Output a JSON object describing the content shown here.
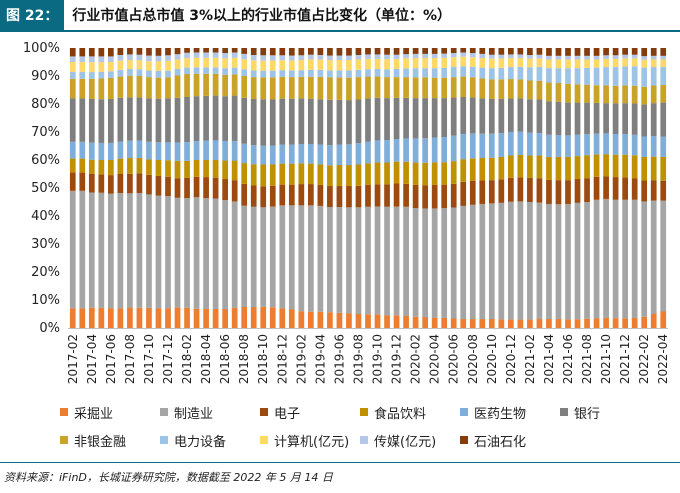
{
  "header": {
    "figure_number": "图 22：",
    "figure_title": "行业市值占总市值 3%以上的行业市值占比变化（单位：%）"
  },
  "source": "资料来源：iFinD，长城证券研究院，数据截至 2022 年 5 月 14 日",
  "chart_data": {
    "type": "bar",
    "stacked": true,
    "categories": [
      "2017-02",
      "2017-03",
      "2017-04",
      "2017-05",
      "2017-06",
      "2017-07",
      "2017-08",
      "2017-09",
      "2017-10",
      "2017-11",
      "2017-12",
      "2018-01",
      "2018-02",
      "2018-03",
      "2018-04",
      "2018-05",
      "2018-06",
      "2018-07",
      "2018-08",
      "2018-09",
      "2018-10",
      "2018-11",
      "2018-12",
      "2019-01",
      "2019-02",
      "2019-03",
      "2019-04",
      "2019-05",
      "2019-06",
      "2019-07",
      "2019-08",
      "2019-09",
      "2019-10",
      "2019-11",
      "2019-12",
      "2020-01",
      "2020-02",
      "2020-03",
      "2020-04",
      "2020-05",
      "2020-06",
      "2020-07",
      "2020-08",
      "2020-09",
      "2020-10",
      "2020-11",
      "2020-12",
      "2021-01",
      "2021-02",
      "2021-03",
      "2021-04",
      "2021-05",
      "2021-06",
      "2021-07",
      "2021-08",
      "2021-09",
      "2021-10",
      "2021-11",
      "2021-12",
      "2022-01",
      "2022-02",
      "2022-03",
      "2022-04"
    ],
    "tick_labels": [
      "2017-02",
      "2017-04",
      "2017-06",
      "2017-08",
      "2017-10",
      "2017-12",
      "2018-02",
      "2018-04",
      "2018-06",
      "2018-08",
      "2018-10",
      "2018-12",
      "2019-02",
      "2019-04",
      "2019-06",
      "2019-08",
      "2019-10",
      "2019-12",
      "2020-02",
      "2020-04",
      "2020-06",
      "2020-08",
      "2020-10",
      "2020-12",
      "2021-02",
      "2021-04",
      "2021-06",
      "2021-08",
      "2021-10",
      "2021-12",
      "2022-02",
      "2022-04"
    ],
    "ylim": [
      0,
      100
    ],
    "y_ticks": [
      "0%",
      "10%",
      "20%",
      "30%",
      "40%",
      "50%",
      "60%",
      "70%",
      "80%",
      "90%",
      "100%"
    ],
    "legend_placement": "bottom",
    "grid": false,
    "series": [
      {
        "name": "采掘业",
        "color": "#ed7d31",
        "values": [
          7.0,
          7.0,
          7.2,
          7.2,
          7.0,
          7.0,
          7.3,
          7.2,
          7.2,
          7.0,
          7.0,
          7.4,
          7.2,
          6.9,
          6.8,
          6.8,
          6.8,
          7.2,
          7.5,
          7.5,
          7.6,
          7.4,
          7.0,
          6.6,
          6.0,
          5.8,
          5.8,
          5.6,
          5.4,
          5.2,
          5.0,
          4.9,
          4.8,
          4.6,
          4.5,
          4.3,
          4.0,
          3.9,
          3.7,
          3.6,
          3.4,
          3.2,
          3.2,
          3.2,
          3.2,
          3.1,
          3.0,
          3.0,
          3.0,
          3.2,
          3.2,
          3.2,
          3.1,
          3.1,
          3.3,
          3.5,
          3.6,
          3.5,
          3.5,
          3.6,
          4.0,
          5.0,
          5.9
        ]
      },
      {
        "name": "制造业",
        "color": "#a5a5a5",
        "values": [
          42.0,
          42.0,
          41.2,
          41.1,
          41.0,
          41.2,
          40.8,
          41.0,
          40.5,
          40.3,
          40.1,
          39.1,
          39.2,
          39.8,
          39.6,
          39.4,
          38.9,
          38.0,
          36.2,
          35.8,
          35.5,
          36.0,
          36.8,
          37.2,
          37.8,
          38.0,
          37.8,
          37.6,
          37.8,
          37.9,
          38.1,
          38.4,
          38.6,
          38.7,
          38.9,
          39.0,
          38.8,
          38.8,
          39.0,
          39.2,
          39.6,
          40.4,
          40.8,
          41.1,
          41.3,
          41.6,
          42.1,
          42.2,
          42.0,
          41.6,
          41.1,
          41.0,
          41.2,
          41.6,
          41.7,
          42.3,
          42.5,
          42.3,
          42.3,
          42.2,
          41.2,
          40.5,
          39.6
        ]
      },
      {
        "name": "电子",
        "color": "#9c4a10",
        "values": [
          6.5,
          6.5,
          6.6,
          6.5,
          6.6,
          6.8,
          7.0,
          7.0,
          7.0,
          7.0,
          6.9,
          7.0,
          7.2,
          7.3,
          7.5,
          7.5,
          7.5,
          7.6,
          7.8,
          7.6,
          7.5,
          7.4,
          7.4,
          7.4,
          7.6,
          7.6,
          7.5,
          7.5,
          7.5,
          7.6,
          7.7,
          7.8,
          7.9,
          8.0,
          8.2,
          8.2,
          8.3,
          8.3,
          8.4,
          8.4,
          8.5,
          8.6,
          8.5,
          8.4,
          8.3,
          8.4,
          8.5,
          8.6,
          8.6,
          8.7,
          8.6,
          8.6,
          8.5,
          8.5,
          8.5,
          8.2,
          8.0,
          8.1,
          8.0,
          7.6,
          7.5,
          7.3,
          7.1
        ]
      },
      {
        "name": "食品饮料",
        "color": "#bf9000",
        "values": [
          5.0,
          5.0,
          5.1,
          5.2,
          5.4,
          5.5,
          5.6,
          5.5,
          5.5,
          5.7,
          5.9,
          6.2,
          6.1,
          6.0,
          6.1,
          6.3,
          6.6,
          7.0,
          7.4,
          7.6,
          7.8,
          7.6,
          7.5,
          7.5,
          7.4,
          7.3,
          7.3,
          7.4,
          7.5,
          7.5,
          7.6,
          7.7,
          7.8,
          7.8,
          7.8,
          7.9,
          8.0,
          8.0,
          8.0,
          8.0,
          8.1,
          8.1,
          8.1,
          8.0,
          8.0,
          8.0,
          8.0,
          8.0,
          8.0,
          8.1,
          8.2,
          8.3,
          8.3,
          8.2,
          8.2,
          8.0,
          8.0,
          8.0,
          8.1,
          8.3,
          8.4,
          8.4,
          8.5
        ]
      },
      {
        "name": "医药生物",
        "color": "#7faedb",
        "values": [
          6.0,
          6.0,
          6.1,
          6.1,
          6.1,
          6.1,
          6.2,
          6.2,
          6.3,
          6.3,
          6.4,
          6.5,
          6.7,
          6.8,
          6.9,
          7.0,
          7.0,
          7.0,
          6.9,
          6.8,
          6.7,
          6.7,
          6.8,
          6.8,
          6.9,
          7.0,
          7.1,
          7.2,
          7.3,
          7.4,
          7.6,
          7.8,
          7.9,
          8.0,
          8.1,
          8.3,
          8.6,
          8.8,
          8.9,
          9.0,
          9.1,
          9.0,
          8.9,
          8.7,
          8.6,
          8.5,
          8.4,
          8.3,
          8.2,
          8.0,
          7.9,
          7.8,
          7.7,
          7.6,
          7.5,
          7.4,
          7.4,
          7.4,
          7.4,
          7.3,
          7.3,
          7.3,
          7.3
        ]
      },
      {
        "name": "银行",
        "color": "#7f7f7f",
        "values": [
          15.5,
          15.5,
          15.6,
          15.6,
          15.7,
          15.6,
          15.4,
          15.4,
          15.5,
          15.6,
          15.7,
          16.0,
          16.1,
          16.0,
          16.0,
          16.0,
          16.0,
          16.2,
          16.4,
          16.5,
          16.6,
          16.5,
          16.4,
          16.4,
          16.3,
          16.2,
          16.2,
          16.2,
          16.0,
          15.8,
          15.6,
          15.4,
          15.2,
          15.0,
          14.7,
          14.5,
          14.4,
          14.3,
          14.1,
          13.9,
          13.6,
          13.2,
          12.8,
          12.6,
          12.4,
          12.2,
          12.0,
          11.9,
          11.9,
          12.0,
          12.0,
          11.9,
          11.7,
          11.5,
          11.3,
          11.0,
          10.8,
          10.9,
          11.0,
          11.2,
          11.4,
          11.8,
          12.1
        ]
      },
      {
        "name": "非银金融",
        "color": "#c9a227",
        "values": [
          7.0,
          7.0,
          7.2,
          7.4,
          7.5,
          7.6,
          7.8,
          7.7,
          7.6,
          7.5,
          7.5,
          8.0,
          8.2,
          8.0,
          7.9,
          7.8,
          7.6,
          7.6,
          7.8,
          7.8,
          7.8,
          7.9,
          7.8,
          7.7,
          7.7,
          7.8,
          8.0,
          8.0,
          8.0,
          8.0,
          8.0,
          7.8,
          7.6,
          7.5,
          7.4,
          7.4,
          7.4,
          7.4,
          7.3,
          7.3,
          7.3,
          7.3,
          7.2,
          7.1,
          7.0,
          7.0,
          6.9,
          6.8,
          6.7,
          6.7,
          6.7,
          6.7,
          6.7,
          6.5,
          6.4,
          6.3,
          6.3,
          6.3,
          6.3,
          6.3,
          6.3,
          6.3,
          6.3
        ]
      },
      {
        "name": "电力设备",
        "color": "#9dc3e6",
        "values": [
          2.5,
          2.5,
          2.4,
          2.4,
          2.4,
          2.4,
          2.4,
          2.4,
          2.4,
          2.4,
          2.4,
          2.3,
          2.3,
          2.3,
          2.3,
          2.3,
          2.4,
          2.4,
          2.4,
          2.4,
          2.4,
          2.4,
          2.4,
          2.4,
          2.4,
          2.5,
          2.5,
          2.5,
          2.5,
          2.6,
          2.6,
          2.6,
          2.7,
          2.8,
          2.9,
          3.1,
          3.3,
          3.3,
          3.4,
          3.5,
          3.6,
          3.7,
          3.8,
          3.9,
          4.0,
          4.1,
          4.3,
          4.5,
          4.7,
          4.9,
          5.1,
          5.3,
          5.6,
          5.8,
          6.0,
          6.3,
          6.6,
          6.7,
          6.8,
          7.0,
          6.9,
          6.6,
          6.4
        ]
      },
      {
        "name": "计算机(亿元)",
        "color": "#ffd966",
        "values": [
          3.5,
          3.5,
          3.5,
          3.4,
          3.3,
          3.3,
          3.2,
          3.2,
          3.3,
          3.4,
          3.5,
          3.4,
          3.4,
          3.4,
          3.4,
          3.4,
          3.5,
          3.5,
          3.6,
          3.6,
          3.6,
          3.6,
          3.5,
          3.5,
          3.6,
          3.7,
          3.7,
          3.7,
          3.7,
          3.7,
          3.7,
          3.7,
          3.6,
          3.6,
          3.6,
          3.6,
          3.6,
          3.6,
          3.6,
          3.6,
          3.5,
          3.4,
          3.4,
          3.4,
          3.4,
          3.3,
          3.2,
          3.1,
          3.1,
          3.1,
          3.1,
          3.1,
          3.1,
          3.1,
          3.0,
          2.9,
          2.9,
          2.9,
          2.9,
          2.8,
          2.8,
          2.7,
          2.7
        ]
      },
      {
        "name": "传媒(亿元)",
        "color": "#b4c7e7",
        "values": [
          2.0,
          2.0,
          2.1,
          2.1,
          2.0,
          2.0,
          2.0,
          2.0,
          2.0,
          2.0,
          2.0,
          1.9,
          1.9,
          1.9,
          1.9,
          1.9,
          1.9,
          1.9,
          1.9,
          1.9,
          1.9,
          1.9,
          1.8,
          1.8,
          1.7,
          1.7,
          1.6,
          1.6,
          1.6,
          1.6,
          1.6,
          1.6,
          1.6,
          1.6,
          1.5,
          1.5,
          1.5,
          1.5,
          1.5,
          1.5,
          1.5,
          1.5,
          1.5,
          1.5,
          1.4,
          1.4,
          1.3,
          1.3,
          1.3,
          1.3,
          1.3,
          1.3,
          1.3,
          1.3,
          1.3,
          1.3,
          1.3,
          1.3,
          1.3,
          1.3,
          1.3,
          1.3,
          1.3
        ]
      },
      {
        "name": "石油石化",
        "color": "#843c0c",
        "values": [
          3.0,
          3.0,
          3.0,
          3.0,
          3.0,
          2.5,
          2.3,
          2.4,
          2.7,
          2.8,
          2.6,
          2.2,
          1.7,
          1.6,
          1.6,
          1.6,
          1.8,
          1.6,
          2.1,
          2.5,
          2.6,
          2.6,
          2.6,
          2.7,
          2.6,
          2.4,
          2.5,
          2.7,
          2.7,
          2.7,
          2.5,
          2.3,
          2.3,
          2.4,
          2.4,
          2.2,
          2.1,
          2.1,
          2.1,
          2.0,
          1.8,
          1.6,
          1.8,
          2.1,
          2.4,
          2.4,
          2.3,
          2.3,
          2.5,
          2.4,
          2.8,
          2.8,
          2.8,
          2.8,
          2.8,
          2.8,
          2.6,
          2.6,
          2.4,
          2.4,
          2.9,
          2.8,
          2.8
        ]
      }
    ]
  }
}
